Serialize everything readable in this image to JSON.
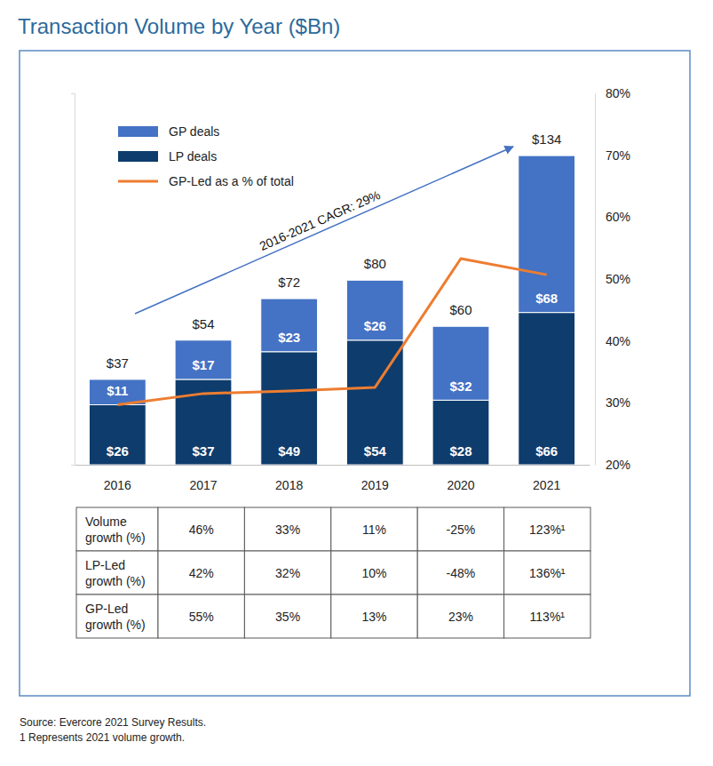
{
  "chart_data": {
    "type": "bar",
    "title": "Transaction Volume by Year ($Bn)",
    "categories": [
      "2016",
      "2017",
      "2018",
      "2019",
      "2020",
      "2021"
    ],
    "series": [
      {
        "name": "GP deals",
        "type": "bar",
        "color": "#4472c4",
        "values": [
          11,
          17,
          23,
          26,
          32,
          68
        ],
        "value_labels": [
          "$11",
          "$17",
          "$23",
          "$26",
          "$32",
          "$68"
        ]
      },
      {
        "name": "LP deals",
        "type": "bar",
        "color": "#0e3c6c",
        "values": [
          26,
          37,
          49,
          54,
          28,
          66
        ],
        "value_labels": [
          "$26",
          "$37",
          "$49",
          "$54",
          "$28",
          "$66"
        ]
      },
      {
        "name": "GP-Led as a % of total",
        "type": "line",
        "axis": "y2",
        "color": "#ed7d31",
        "values": [
          29.7,
          31.5,
          31.9,
          32.5,
          53.3,
          50.7
        ]
      }
    ],
    "totals": {
      "values": [
        37,
        54,
        72,
        80,
        60,
        134
      ],
      "value_labels": [
        "$37",
        "$54",
        "$72",
        "$80",
        "$60",
        "$134"
      ]
    },
    "annotations": [
      {
        "text": "2016-2021 CAGR: 29%"
      }
    ],
    "ylim": [
      0,
      161
    ],
    "yticks": [],
    "y2lim": [
      20,
      80
    ],
    "y2ticks": [
      {
        "value": 20,
        "label": "20%"
      },
      {
        "value": 30,
        "label": "30%"
      },
      {
        "value": 40,
        "label": "40%"
      },
      {
        "value": 50,
        "label": "50%"
      },
      {
        "value": 60,
        "label": "60%"
      },
      {
        "value": 70,
        "label": "70%"
      },
      {
        "value": 80,
        "label": "80%"
      }
    ],
    "stacked": true,
    "data_labels": true,
    "legend": "upper left",
    "grid": false
  },
  "table": {
    "rows": [
      [
        "Volume growth (%)",
        "46%",
        "33%",
        "11%",
        "-25%",
        "123%¹"
      ],
      [
        "LP-Led growth (%)",
        "42%",
        "32%",
        "10%",
        "-48%",
        "136%¹"
      ],
      [
        "GP-Led growth (%)",
        "55%",
        "35%",
        "13%",
        "23%",
        "113%¹"
      ]
    ]
  },
  "notes": [
    "Source: Evercore 2021 Survey Results.",
    "1 Represents 2021 volume growth."
  ]
}
